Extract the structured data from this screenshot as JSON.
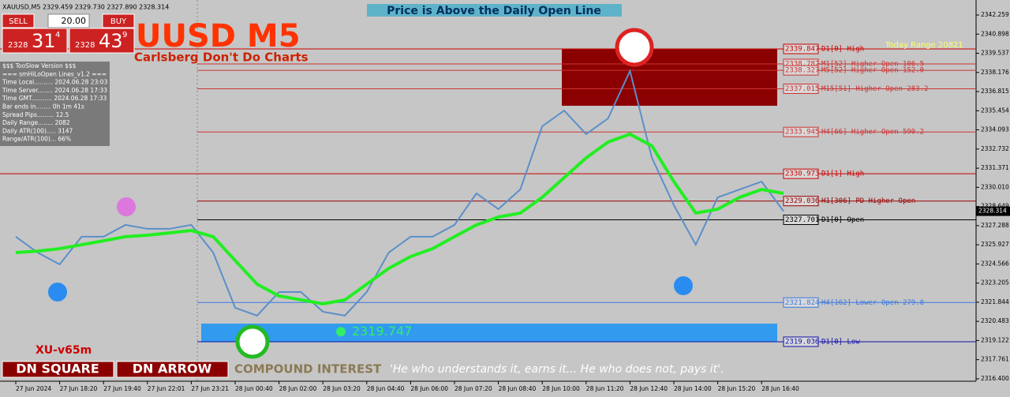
{
  "header": {
    "symbol_line": "XAUUSD,M5  2329.459 2329.730 2327.890 2328.314",
    "banner": "Price is Above the Daily Open Line",
    "big_title": "UUSD M5",
    "subtitle": "Carlsberg Don't Do Charts",
    "today_range": "Today Range  20821"
  },
  "trade_panel": {
    "sell": "SELL",
    "lots": "20.00",
    "buy": "BUY",
    "sell_big": "2328",
    "sell_pips": "31",
    "sell_frac": "4",
    "buy_big": "2328",
    "buy_pips": "43",
    "buy_frac": "9"
  },
  "info_panel": {
    "lines": [
      "$$$ TooSlow Version $$$",
      "=== smHiLoOpen Lines_v1.2 ===",
      "Time Local.......... 2024.06.28 23:03",
      "Time Server........ 2024.06.28 17:33",
      "Time GMT........... 2024.06.28 17:33",
      "Bar ends in........ 0h 1m 41s",
      "Spread Pips......... 12.5",
      "Daily Range........ 2082",
      "Daily ATR(100)..... 3147",
      "Range/ATR(100)... 66%"
    ]
  },
  "footer": {
    "version": "XU-v65m",
    "button_1": "DN SQUARE",
    "button_2": "DN ARROW",
    "compound": "COMPOUND INTEREST",
    "quote": "'He who understands it, earns it... He who does not, pays it'."
  },
  "chart_data": {
    "type": "line",
    "categories": [
      "27 Jun 2024",
      null,
      "27 Jun 18:20",
      null,
      "27 Jun 19:40",
      null,
      "27 Jun 22:01",
      null,
      "27 Jun 23:21",
      null,
      "28 Jun 00:40",
      null,
      "28 Jun 02:00",
      null,
      "28 Jun 03:20",
      null,
      "28 Jun 04:40",
      null,
      "28 Jun 06:00",
      null,
      "28 Jun 07:20",
      null,
      "28 Jun 08:40",
      null,
      "28 Jun 10:00",
      null,
      "28 Jun 11:20",
      null,
      "28 Jun 12:40",
      null,
      "28 Jun 14:00",
      null,
      "28 Jun 15:20",
      null,
      "28 Jun 16:40",
      null
    ],
    "series": [
      {
        "color": "#5b8fc9",
        "values": [
          2326.5,
          2325.37,
          2324.53,
          2326.5,
          2326.5,
          2327.34,
          2327.06,
          2327.06,
          2327.34,
          2325.37,
          2321.45,
          2320.89,
          2322.57,
          2322.57,
          2321.17,
          2320.89,
          2322.57,
          2325.37,
          2326.5,
          2326.5,
          2327.34,
          2329.58,
          2328.46,
          2329.86,
          2334.35,
          2335.47,
          2333.79,
          2334.91,
          2338.28,
          2332.1,
          2328.74,
          2325.93,
          2329.3,
          2329.86,
          2330.42,
          2328.31
        ]
      },
      {
        "color": "#22ee22",
        "values": [
          2325.37,
          2325.48,
          2325.65,
          2325.93,
          2326.21,
          2326.5,
          2326.61,
          2326.77,
          2326.94,
          2326.5,
          2324.81,
          2323.13,
          2322.29,
          2322.01,
          2321.73,
          2322.01,
          2323.13,
          2324.25,
          2325.09,
          2325.65,
          2326.5,
          2327.34,
          2327.9,
          2328.18,
          2329.3,
          2330.7,
          2332.1,
          2333.23,
          2333.79,
          2332.95,
          2330.42,
          2328.18,
          2328.46,
          2329.3,
          2329.86,
          2329.58
        ]
      }
    ],
    "ylim": [
      2316.229,
      2342.764
    ],
    "yticks": [
      {
        "value": 2342.259,
        "label": "2342.259"
      },
      {
        "value": 2340.898,
        "label": "2340.898"
      },
      {
        "value": 2339.537,
        "label": "2339.537"
      },
      {
        "value": 2338.176,
        "label": "2338.176"
      },
      {
        "value": 2336.815,
        "label": "2336.815"
      },
      {
        "value": 2335.454,
        "label": "2335.454"
      },
      {
        "value": 2334.093,
        "label": "2334.093"
      },
      {
        "value": 2332.732,
        "label": "2332.732"
      },
      {
        "value": 2331.371,
        "label": "2331.371"
      },
      {
        "value": 2330.01,
        "label": "2330.010"
      },
      {
        "value": 2328.649,
        "label": "2328.649"
      },
      {
        "value": 2327.288,
        "label": "2327.288"
      },
      {
        "value": 2325.927,
        "label": "2325.927"
      },
      {
        "value": 2324.566,
        "label": "2324.566"
      },
      {
        "value": 2323.205,
        "label": "2323.205"
      },
      {
        "value": 2321.844,
        "label": "2321.844"
      },
      {
        "value": 2320.483,
        "label": "2320.483"
      },
      {
        "value": 2319.122,
        "label": "2319.122"
      },
      {
        "value": 2317.761,
        "label": "2317.761"
      },
      {
        "value": 2316.4,
        "label": "2316.400"
      }
    ],
    "last_price": 2328.314,
    "low_marker": 2319.747,
    "levels": [
      {
        "value": 2339.847,
        "label": "D1[0] High",
        "color": "#cc0000"
      },
      {
        "value": 2338.782,
        "label": "M1[52] Higher Open 106.5",
        "color": "#cc3333"
      },
      {
        "value": 2338.327,
        "label": "M5[52] Higher Open 152.0",
        "color": "#cc3333"
      },
      {
        "value": 2337.015,
        "label": "M15[51] Higher Open 283.2",
        "color": "#cc3333"
      },
      {
        "value": 2333.945,
        "label": "H4[66] Higher Open 590.2",
        "color": "#cc3333"
      },
      {
        "value": 2330.973,
        "label": "D1[1] High",
        "color": "#cc0000"
      },
      {
        "value": 2329.036,
        "label": "H1[306] PD Higher Open",
        "color": "#990000"
      },
      {
        "value": 2327.701,
        "label": "D1[0] Open",
        "color": "#000000"
      },
      {
        "value": 2321.824,
        "label": "H4[162] Lower Open 279.8",
        "color": "#3a78e0"
      },
      {
        "value": 2319.036,
        "label": "D1[0] Low",
        "color": "#1010aa"
      }
    ]
  }
}
